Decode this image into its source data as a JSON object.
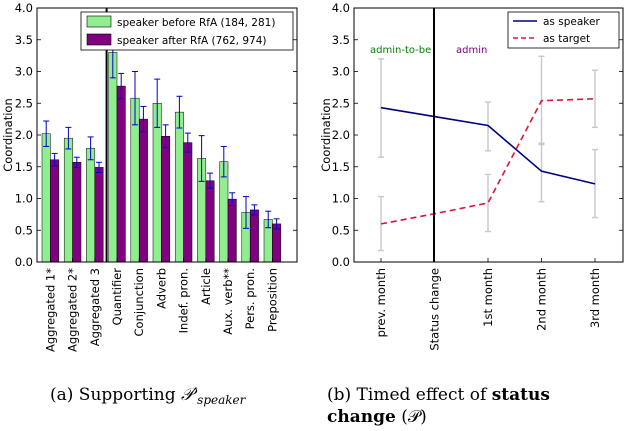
{
  "chart_data": [
    {
      "type": "bar",
      "ylabel": "Coordination",
      "ylim": [
        0,
        4.0
      ],
      "yticks": [
        "0.0",
        "0.5",
        "1.0",
        "1.5",
        "2.0",
        "2.5",
        "3.0",
        "3.5",
        "4.0"
      ],
      "categories": [
        "Aggregated 1*",
        "Aggregated 2*",
        "Aggregated 3",
        "Quantifier",
        "Conjunction",
        "Adverb",
        "Indef. pron.",
        "Article",
        "Aux. verb**",
        "Pers. pron.",
        "Preposition"
      ],
      "series": [
        {
          "name": "speaker before RfA (184, 281)",
          "color": "#90ee90",
          "values": [
            2.02,
            1.95,
            1.79,
            3.3,
            2.58,
            2.5,
            2.36,
            1.63,
            1.58,
            0.78,
            0.67
          ],
          "err": [
            0.2,
            0.17,
            0.18,
            0.4,
            0.42,
            0.38,
            0.25,
            0.36,
            0.24,
            0.25,
            0.13
          ]
        },
        {
          "name": "speaker after RfA (762, 974)",
          "color": "#800080",
          "values": [
            1.61,
            1.57,
            1.49,
            2.77,
            2.25,
            1.98,
            1.88,
            1.28,
            0.99,
            0.82,
            0.6
          ],
          "err": [
            0.1,
            0.08,
            0.08,
            0.2,
            0.2,
            0.18,
            0.15,
            0.12,
            0.1,
            0.08,
            0.08
          ]
        }
      ],
      "error_bar_color": "#0000cd",
      "legend_position": "top-right",
      "caption_prefix": "(a) Supporting ",
      "caption_math": "𝒫′",
      "caption_sub": "speaker"
    },
    {
      "type": "line",
      "ylabel": "Coordination",
      "ylim": [
        0,
        4.0
      ],
      "yticks": [
        "0.0",
        "0.5",
        "1.0",
        "1.5",
        "2.0",
        "2.5",
        "3.0",
        "3.5",
        "4.0"
      ],
      "categories": [
        "prev. month",
        "Status change",
        "1st month",
        "2nd month",
        "3rd month"
      ],
      "series": [
        {
          "name": "as speaker",
          "color": "#000080",
          "style": "solid",
          "x": [
            0,
            1,
            2,
            3,
            4
          ],
          "values": [
            2.43,
            2.29,
            2.15,
            1.43,
            1.23
          ],
          "lo": [
            1.65,
            null,
            1.75,
            0.95,
            0.7
          ],
          "hi": [
            3.2,
            null,
            2.52,
            1.87,
            1.77
          ]
        },
        {
          "name": "as target",
          "color": "#dc143c",
          "style": "dashed",
          "x": [
            0,
            1,
            2,
            3,
            4
          ],
          "values": [
            0.6,
            0.76,
            0.93,
            2.54,
            2.57
          ],
          "lo": [
            0.18,
            null,
            0.48,
            1.85,
            2.12
          ],
          "hi": [
            1.03,
            null,
            1.38,
            3.24,
            3.02
          ]
        }
      ],
      "annotations": [
        {
          "text": "admin-to-be",
          "color": "#008000"
        },
        {
          "text": "admin",
          "color": "#800080"
        }
      ],
      "legend_position": "top-right",
      "caption_line1_prefix": "(b)  Timed  effect  of ",
      "caption_line1_bold": "status",
      "caption_line2_bold": "change",
      "caption_line2_rest": " (𝒫)"
    }
  ]
}
